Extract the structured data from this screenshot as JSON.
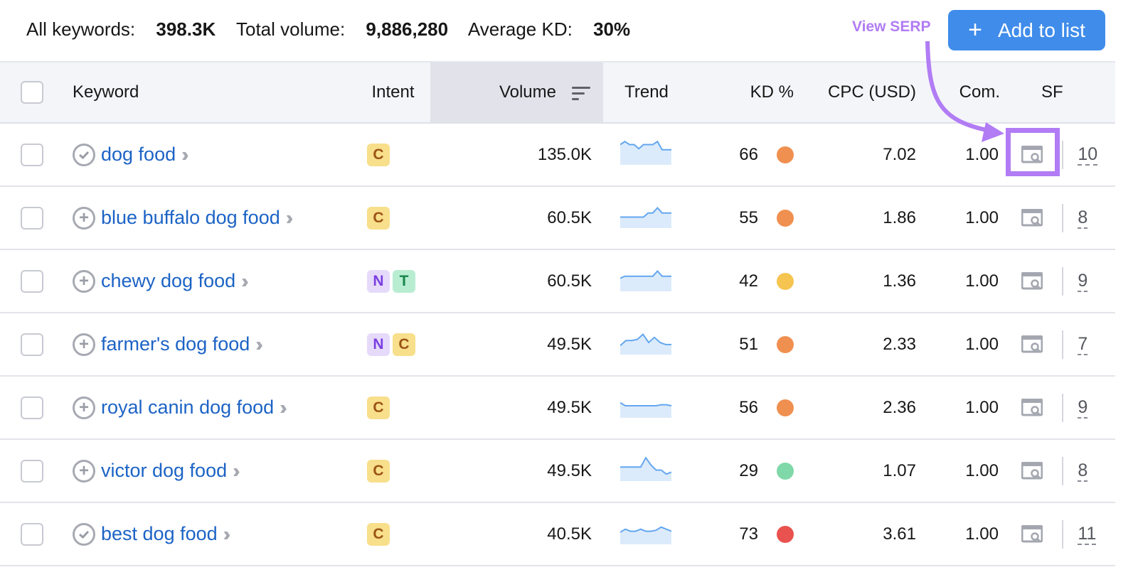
{
  "summary": {
    "all_keywords_label": "All keywords:",
    "all_keywords": "398.3K",
    "total_volume_label": "Total volume:",
    "total_volume": "9,886,280",
    "avg_kd_label": "Average KD:",
    "avg_kd": "30%"
  },
  "annotation": {
    "label": "View SERP",
    "color": "#b17cf4"
  },
  "add_button": {
    "label": "Add to list",
    "icon": "plus-icon",
    "color": "#3f8ceb"
  },
  "columns": [
    "Keyword",
    "Intent",
    "Volume",
    "Trend",
    "KD %",
    "CPC (USD)",
    "Com.",
    "SF"
  ],
  "sorted_column": "Volume",
  "intent_colors": {
    "C": "#f8df8b",
    "N": "#e6dafb",
    "T": "#b9edd2"
  },
  "rows": [
    {
      "keyword": "dog food",
      "status": "check",
      "intent": [
        "C"
      ],
      "volume": "135.0K",
      "trend": [
        0.85,
        1,
        0.85,
        0.85,
        0.65,
        0.85,
        0.85,
        0.85,
        1,
        0.6,
        0.6,
        0.6
      ],
      "kd": "66",
      "kd_color": "#f09050",
      "cpc": "7.02",
      "com": "1.00",
      "sf": "10"
    },
    {
      "keyword": "blue buffalo dog food",
      "status": "add",
      "intent": [
        "C"
      ],
      "volume": "60.5K",
      "trend": [
        0.4,
        0.4,
        0.4,
        0.4,
        0.4,
        0.4,
        0.6,
        0.6,
        0.85,
        0.6,
        0.6,
        0.6
      ],
      "kd": "55",
      "kd_color": "#f09050",
      "cpc": "1.86",
      "com": "1.00",
      "sf": "8"
    },
    {
      "keyword": "chewy dog food",
      "status": "add",
      "intent": [
        "N",
        "T"
      ],
      "volume": "60.5K",
      "trend": [
        0.5,
        0.6,
        0.6,
        0.6,
        0.6,
        0.6,
        0.6,
        0.6,
        0.85,
        0.6,
        0.6,
        0.6
      ],
      "kd": "42",
      "kd_color": "#f5c451",
      "cpc": "1.36",
      "com": "1.00",
      "sf": "9"
    },
    {
      "keyword": "farmer's dog food",
      "status": "add",
      "intent": [
        "N",
        "C"
      ],
      "volume": "49.5K",
      "trend": [
        0.3,
        0.55,
        0.55,
        0.6,
        0.85,
        0.45,
        0.7,
        0.45,
        0.35,
        0.35
      ],
      "kd": "51",
      "kd_color": "#f09050",
      "cpc": "2.33",
      "com": "1.00",
      "sf": "7"
    },
    {
      "keyword": "royal canin dog food",
      "status": "add",
      "intent": [
        "C"
      ],
      "volume": "49.5K",
      "trend": [
        0.6,
        0.45,
        0.45,
        0.45,
        0.45,
        0.45,
        0.45,
        0.45,
        0.5,
        0.5,
        0.45
      ],
      "kd": "56",
      "kd_color": "#f09050",
      "cpc": "2.36",
      "com": "1.00",
      "sf": "9"
    },
    {
      "keyword": "victor dog food",
      "status": "add",
      "intent": [
        "C"
      ],
      "volume": "49.5K",
      "trend": [
        0.55,
        0.55,
        0.55,
        0.55,
        0.55,
        1,
        0.65,
        0.4,
        0.4,
        0.2,
        0.3
      ],
      "kd": "29",
      "kd_color": "#7fd8a8",
      "cpc": "1.07",
      "com": "1.00",
      "sf": "8"
    },
    {
      "keyword": "best dog food",
      "status": "check",
      "intent": [
        "C"
      ],
      "volume": "40.5K",
      "trend": [
        0.45,
        0.6,
        0.5,
        0.5,
        0.6,
        0.5,
        0.5,
        0.55,
        0.7,
        0.6,
        0.5
      ],
      "kd": "73",
      "kd_color": "#e9524f",
      "cpc": "3.61",
      "com": "1.00",
      "sf": "11"
    }
  ]
}
